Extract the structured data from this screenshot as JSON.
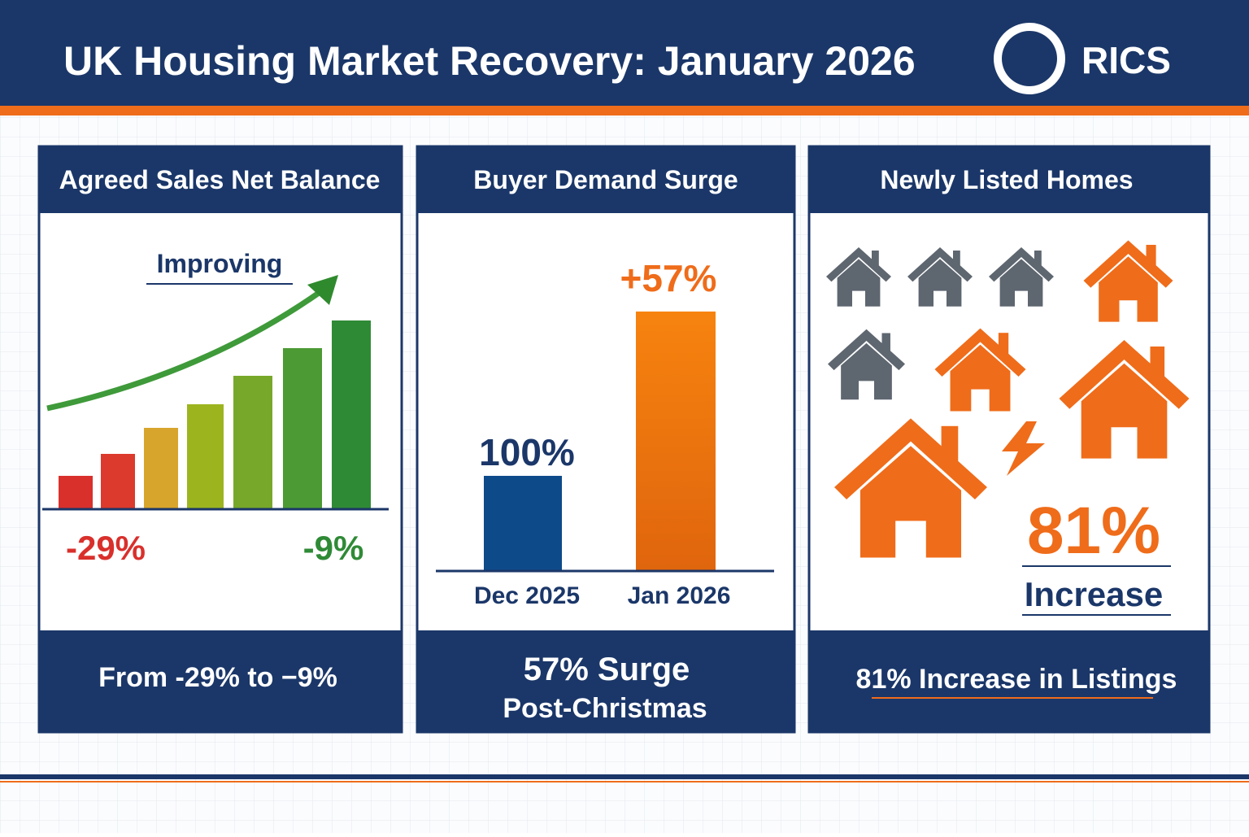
{
  "header": {
    "title": "UK Housing Market Recovery: January 2026",
    "logo": "RICS"
  },
  "panels": [
    {
      "title": "Agreed Sales Net Balance",
      "trend_label": "Improving",
      "start_label": "-29%",
      "end_label": "-9%",
      "footer": "From -29% to −9%"
    },
    {
      "title": "Buyer Demand Surge",
      "bars": [
        {
          "category": "Dec 2025",
          "label": "100%"
        },
        {
          "category": "Jan 2026",
          "label": "+57%"
        }
      ],
      "footer": [
        "57% Surge",
        "Post-Christmas"
      ]
    },
    {
      "title": "Newly Listed Homes",
      "figure": "81%",
      "figure_caption": "Increase",
      "footer": "81% Increase in Listings"
    }
  ]
}
